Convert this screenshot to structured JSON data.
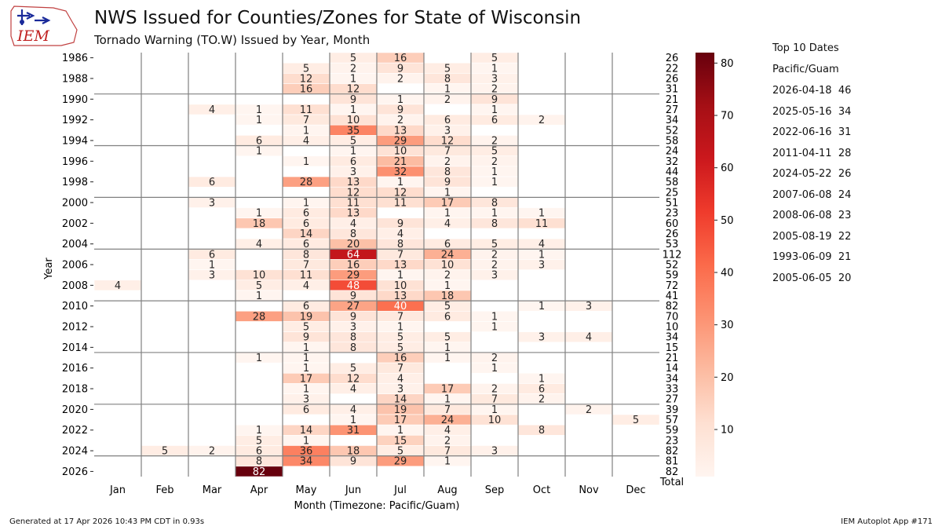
{
  "header": {
    "title": "NWS Issued for Counties/Zones for State of Wisconsin",
    "subtitle": "Tornado Warning (TO.W) Issued by Year, Month",
    "logo_text": "IEM"
  },
  "top10": {
    "title": "Top 10 Dates",
    "timezone": "Pacific/Guam",
    "items": [
      "2026-04-18  46",
      "2025-05-16  34",
      "2022-06-16  31",
      "2011-04-11  28",
      "2024-05-22  26",
      "2007-06-08  24",
      "2008-06-08  23",
      "2005-08-19  22",
      "1993-06-09  21",
      "2005-06-05  20"
    ]
  },
  "footer": {
    "left": "Generated at 17 Apr 2026 10:43 PM CDT in 0.93s",
    "right": "IEM Autoplot App #171"
  },
  "colors": {
    "cmap_low": "#fff5f0",
    "cmap_high": "#67000d",
    "separator": "#808080"
  },
  "chart_data": {
    "type": "heatmap",
    "xlabel": "Month (Timezone: Pacific/Guam)",
    "ylabel": "Year",
    "total_label": "Total",
    "months": [
      "Jan",
      "Feb",
      "Mar",
      "Apr",
      "May",
      "Jun",
      "Jul",
      "Aug",
      "Sep",
      "Oct",
      "Nov",
      "Dec"
    ],
    "year_range": [
      1986,
      2026
    ],
    "year_tick_labels": [
      "1986",
      "1988",
      "1990",
      "1992",
      "1994",
      "1996",
      "1998",
      "2000",
      "2002",
      "2004",
      "2006",
      "2008",
      "2010",
      "2012",
      "2014",
      "2016",
      "2018",
      "2020",
      "2022",
      "2024",
      "2026"
    ],
    "colorbar": {
      "min": 1,
      "max": 82,
      "ticks": [
        10,
        20,
        30,
        40,
        50,
        60,
        70,
        80
      ]
    },
    "values": [
      [
        null,
        null,
        null,
        null,
        null,
        5,
        16,
        null,
        5,
        null,
        null,
        null
      ],
      [
        null,
        null,
        null,
        null,
        5,
        2,
        9,
        5,
        1,
        null,
        null,
        null
      ],
      [
        null,
        null,
        null,
        null,
        12,
        1,
        2,
        8,
        3,
        null,
        null,
        null
      ],
      [
        null,
        null,
        null,
        null,
        16,
        12,
        null,
        1,
        2,
        null,
        null,
        null
      ],
      [
        null,
        null,
        null,
        null,
        null,
        9,
        1,
        2,
        9,
        null,
        null,
        null
      ],
      [
        null,
        null,
        4,
        1,
        11,
        1,
        9,
        null,
        1,
        null,
        null,
        null
      ],
      [
        null,
        null,
        null,
        1,
        7,
        10,
        2,
        6,
        6,
        2,
        null,
        null
      ],
      [
        null,
        null,
        null,
        null,
        1,
        35,
        13,
        3,
        null,
        null,
        null,
        null
      ],
      [
        null,
        null,
        null,
        6,
        4,
        5,
        29,
        12,
        2,
        null,
        null,
        null
      ],
      [
        null,
        null,
        null,
        1,
        null,
        1,
        10,
        7,
        5,
        null,
        null,
        null
      ],
      [
        null,
        null,
        null,
        null,
        1,
        6,
        21,
        2,
        2,
        null,
        null,
        null
      ],
      [
        null,
        null,
        null,
        null,
        null,
        3,
        32,
        8,
        1,
        null,
        null,
        null
      ],
      [
        null,
        null,
        6,
        null,
        28,
        13,
        1,
        9,
        1,
        null,
        null,
        null
      ],
      [
        null,
        null,
        null,
        null,
        null,
        12,
        12,
        1,
        null,
        null,
        null,
        null
      ],
      [
        null,
        null,
        3,
        null,
        1,
        11,
        11,
        17,
        8,
        null,
        null,
        null
      ],
      [
        null,
        null,
        null,
        1,
        6,
        13,
        null,
        1,
        1,
        1,
        null,
        null
      ],
      [
        null,
        null,
        null,
        18,
        6,
        4,
        9,
        4,
        8,
        11,
        null,
        null
      ],
      [
        null,
        null,
        null,
        null,
        14,
        8,
        4,
        null,
        null,
        null,
        null,
        null
      ],
      [
        null,
        null,
        null,
        4,
        6,
        20,
        8,
        6,
        5,
        4,
        null,
        null
      ],
      [
        null,
        null,
        6,
        null,
        8,
        64,
        7,
        24,
        2,
        1,
        null,
        null
      ],
      [
        null,
        null,
        1,
        null,
        7,
        16,
        13,
        10,
        2,
        3,
        null,
        null
      ],
      [
        null,
        null,
        3,
        10,
        11,
        29,
        1,
        2,
        3,
        null,
        null,
        null
      ],
      [
        4,
        null,
        null,
        5,
        4,
        48,
        10,
        1,
        null,
        null,
        null,
        null
      ],
      [
        null,
        null,
        null,
        1,
        null,
        9,
        13,
        18,
        null,
        null,
        null,
        null
      ],
      [
        null,
        null,
        null,
        null,
        6,
        27,
        40,
        5,
        null,
        1,
        3,
        null
      ],
      [
        null,
        null,
        null,
        28,
        19,
        9,
        7,
        6,
        1,
        null,
        null,
        null
      ],
      [
        null,
        null,
        null,
        null,
        5,
        3,
        1,
        null,
        1,
        null,
        null,
        null
      ],
      [
        null,
        null,
        null,
        null,
        9,
        8,
        5,
        5,
        null,
        3,
        4,
        null
      ],
      [
        null,
        null,
        null,
        null,
        1,
        8,
        5,
        1,
        null,
        null,
        null,
        null
      ],
      [
        null,
        null,
        null,
        1,
        1,
        null,
        16,
        1,
        2,
        null,
        null,
        null
      ],
      [
        null,
        null,
        null,
        null,
        1,
        5,
        7,
        null,
        1,
        null,
        null,
        null
      ],
      [
        null,
        null,
        null,
        null,
        17,
        12,
        4,
        null,
        null,
        1,
        null,
        null
      ],
      [
        null,
        null,
        null,
        null,
        1,
        4,
        3,
        17,
        2,
        6,
        null,
        null
      ],
      [
        null,
        null,
        null,
        null,
        3,
        null,
        14,
        1,
        7,
        2,
        null,
        null
      ],
      [
        null,
        null,
        null,
        null,
        6,
        4,
        19,
        7,
        1,
        null,
        2,
        null
      ],
      [
        null,
        null,
        null,
        null,
        null,
        1,
        17,
        24,
        10,
        null,
        null,
        5
      ],
      [
        null,
        null,
        null,
        1,
        14,
        31,
        1,
        4,
        null,
        8,
        null,
        null
      ],
      [
        null,
        null,
        null,
        5,
        1,
        null,
        15,
        2,
        null,
        null,
        null,
        null
      ],
      [
        null,
        5,
        2,
        6,
        36,
        18,
        5,
        7,
        3,
        null,
        null,
        null
      ],
      [
        null,
        null,
        null,
        8,
        34,
        9,
        29,
        1,
        null,
        null,
        null,
        null
      ],
      [
        null,
        null,
        null,
        82,
        null,
        null,
        null,
        null,
        null,
        null,
        null,
        null
      ]
    ],
    "totals": [
      26,
      22,
      26,
      31,
      21,
      27,
      34,
      52,
      58,
      24,
      32,
      44,
      58,
      25,
      51,
      23,
      60,
      26,
      53,
      112,
      52,
      59,
      72,
      41,
      82,
      70,
      10,
      34,
      15,
      21,
      14,
      34,
      33,
      27,
      39,
      57,
      59,
      23,
      82,
      81,
      82
    ],
    "separator_after_years": [
      1989,
      1994,
      1999,
      2004,
      2009,
      2014,
      2019,
      2024
    ]
  }
}
